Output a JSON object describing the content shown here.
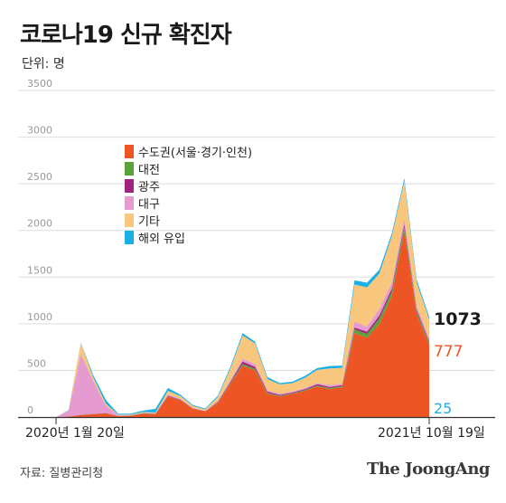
{
  "title": "코로나19 신규 확진자",
  "unit_label": "단위: 명",
  "source": "자료: 질병관리청",
  "brand": "The JoongAng",
  "colors": {
    "capital": "#ee5524",
    "daejeon": "#5aa33a",
    "gwangju": "#a0237e",
    "daegu": "#e59ad0",
    "other": "#f8c77d",
    "overseas": "#1ab0e6",
    "grid": "#dddddd",
    "axis": "#333333",
    "tick": "#999999"
  },
  "chart_data": {
    "type": "area",
    "stacked": true,
    "x_start_label": "2020년 1월 20일",
    "x_end_label": "2021년 10월 19일",
    "ylim": [
      0,
      3500
    ],
    "yticks": [
      0,
      500,
      1000,
      1500,
      2000,
      2500,
      3000,
      3500
    ],
    "legend": [
      {
        "key": "capital",
        "label": "수도권(서울·경기·인천)"
      },
      {
        "key": "daejeon",
        "label": "대전"
      },
      {
        "key": "gwangju",
        "label": "광주"
      },
      {
        "key": "daegu",
        "label": "대구"
      },
      {
        "key": "other",
        "label": "기타"
      },
      {
        "key": "overseas",
        "label": "해외 유입"
      }
    ],
    "end_values": {
      "total": "1073",
      "capital": "777",
      "overseas": "25"
    },
    "x": [
      "2020-01",
      "2020-02a",
      "2020-02b",
      "2020-03a",
      "2020-03b",
      "2020-04",
      "2020-05",
      "2020-06",
      "2020-07",
      "2020-08a",
      "2020-08b",
      "2020-09",
      "2020-10",
      "2020-11a",
      "2020-11b",
      "2020-12a",
      "2020-12b",
      "2021-01a",
      "2021-01b",
      "2021-02",
      "2021-03",
      "2021-04",
      "2021-05",
      "2021-06",
      "2021-07a",
      "2021-07b",
      "2021-08",
      "2021-09a",
      "2021-09b",
      "2021-10a",
      "2021-10b"
    ],
    "series": [
      {
        "key": "capital",
        "values": [
          0,
          5,
          20,
          30,
          40,
          10,
          15,
          35,
          30,
          220,
          180,
          90,
          60,
          150,
          350,
          550,
          500,
          250,
          220,
          250,
          280,
          330,
          300,
          320,
          900,
          850,
          1000,
          1300,
          2000,
          1100,
          777
        ]
      },
      {
        "key": "daejeon",
        "values": [
          0,
          0,
          2,
          2,
          2,
          0,
          1,
          5,
          3,
          3,
          2,
          2,
          1,
          5,
          10,
          20,
          18,
          10,
          8,
          6,
          8,
          8,
          10,
          12,
          40,
          40,
          60,
          50,
          40,
          30,
          20
        ]
      },
      {
        "key": "gwangju",
        "values": [
          0,
          0,
          2,
          2,
          2,
          0,
          0,
          3,
          4,
          8,
          5,
          3,
          2,
          8,
          12,
          25,
          20,
          12,
          10,
          8,
          10,
          15,
          12,
          10,
          20,
          25,
          30,
          30,
          30,
          20,
          15
        ]
      },
      {
        "key": "daegu",
        "values": [
          0,
          60,
          650,
          350,
          80,
          10,
          5,
          3,
          5,
          10,
          8,
          5,
          4,
          10,
          20,
          30,
          30,
          15,
          12,
          10,
          12,
          12,
          20,
          15,
          60,
          55,
          70,
          60,
          60,
          40,
          30
        ]
      },
      {
        "key": "other",
        "values": [
          0,
          5,
          120,
          40,
          20,
          5,
          5,
          8,
          6,
          40,
          30,
          20,
          15,
          40,
          120,
          250,
          220,
          120,
          100,
          90,
          110,
          140,
          180,
          170,
          400,
          420,
          380,
          500,
          400,
          250,
          206
        ]
      },
      {
        "key": "overseas",
        "values": [
          0,
          5,
          5,
          25,
          40,
          10,
          10,
          15,
          40,
          30,
          15,
          10,
          10,
          15,
          20,
          25,
          20,
          20,
          15,
          15,
          20,
          20,
          25,
          25,
          45,
          50,
          40,
          30,
          30,
          30,
          25
        ]
      }
    ]
  }
}
